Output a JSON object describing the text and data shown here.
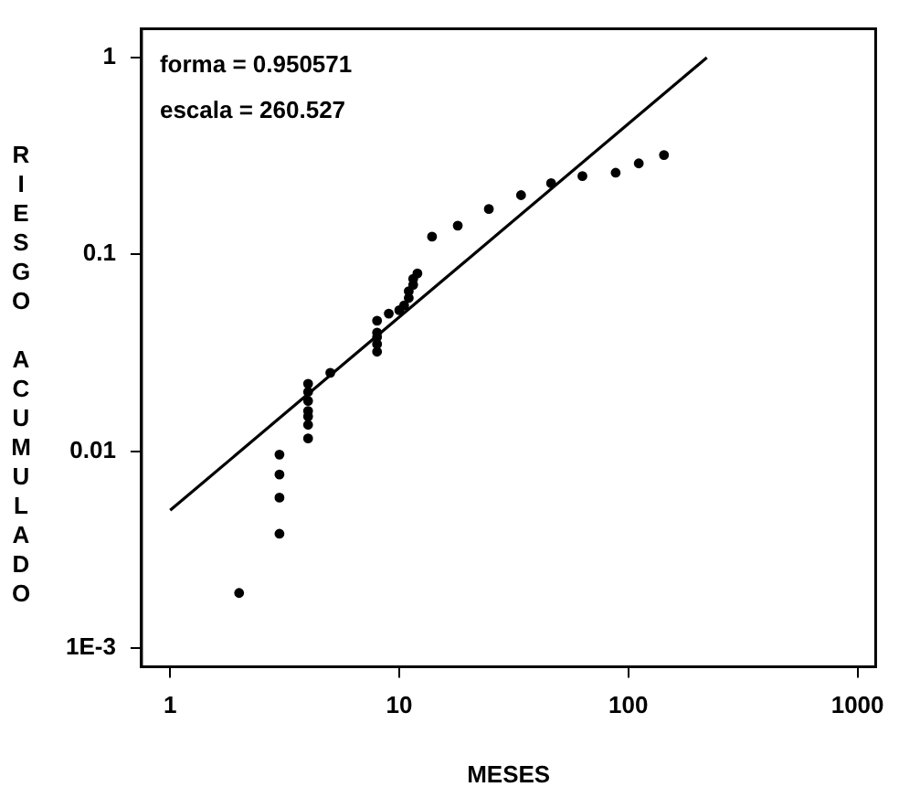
{
  "chart_data": {
    "type": "scatter",
    "xlabel": "MESES",
    "ylabel": "RIESGO ACUMULADO",
    "log": "xy",
    "xlim": [
      0.75,
      1200
    ],
    "ylim": [
      0.0008,
      1.4
    ],
    "xticks": [
      1,
      10,
      100,
      1000
    ],
    "yticks": [
      1,
      0.1,
      0.01,
      {
        "value": 0.001,
        "label": "1E-3"
      }
    ],
    "grid": false,
    "legend": false,
    "marker": "circle",
    "annotations": [
      "forma = 0.950571",
      "escala = 260.527"
    ],
    "series": [
      {
        "type": "scatter",
        "color": "#000000",
        "x": [
          2,
          3,
          3,
          3,
          3,
          4,
          4,
          4,
          4,
          4,
          4,
          4,
          5,
          8,
          8,
          8,
          8,
          8,
          9,
          10,
          10.5,
          11,
          11,
          11.5,
          11.5,
          12,
          13.9,
          18,
          24.6,
          34,
          46,
          63,
          88,
          111,
          143
        ],
        "values": [
          0.0019,
          0.0096,
          0.0076,
          0.0058,
          0.0038,
          0.022,
          0.02,
          0.018,
          0.016,
          0.015,
          0.0136,
          0.0116,
          0.025,
          0.046,
          0.04,
          0.038,
          0.035,
          0.032,
          0.05,
          0.052,
          0.055,
          0.06,
          0.065,
          0.07,
          0.075,
          0.08,
          0.123,
          0.14,
          0.17,
          0.2,
          0.23,
          0.25,
          0.26,
          0.29,
          0.32
        ]
      },
      {
        "type": "line",
        "color": "#000000",
        "x": [
          1,
          220
        ],
        "values": [
          0.005,
          1.0
        ],
        "marker": "none"
      }
    ]
  }
}
